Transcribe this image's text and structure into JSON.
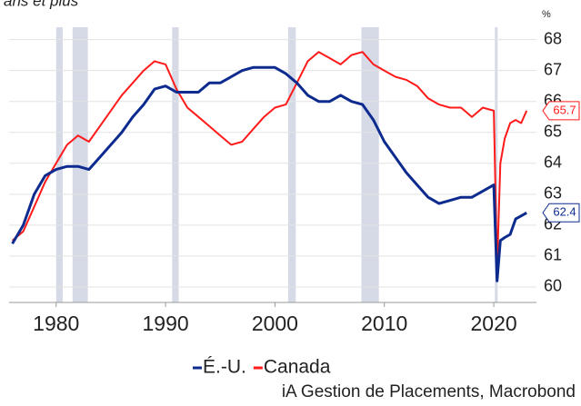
{
  "chart_data": {
    "type": "line",
    "title": "ans et plus",
    "y_unit": "%",
    "x": [
      1976,
      1977,
      1978,
      1979,
      1980,
      1981,
      1982,
      1983,
      1984,
      1985,
      1986,
      1987,
      1988,
      1989,
      1990,
      1991,
      1992,
      1993,
      1994,
      1995,
      1996,
      1997,
      1998,
      1999,
      2000,
      2001,
      2002,
      2003,
      2004,
      2005,
      2006,
      2007,
      2008,
      2009,
      2010,
      2011,
      2012,
      2013,
      2014,
      2015,
      2016,
      2017,
      2018,
      2019,
      2020.0,
      2020.3,
      2020.6,
      2021,
      2021.5,
      2022,
      2022.5,
      2023
    ],
    "series": [
      {
        "name": "É.-U.",
        "color": "#0d2b8f",
        "width": 3,
        "end_value": 62.4,
        "values": [
          61.4,
          62.0,
          63.0,
          63.6,
          63.8,
          63.9,
          63.9,
          63.8,
          64.2,
          64.6,
          65.0,
          65.5,
          65.9,
          66.4,
          66.5,
          66.3,
          66.3,
          66.3,
          66.6,
          66.6,
          66.8,
          67.0,
          67.1,
          67.1,
          67.1,
          66.9,
          66.6,
          66.2,
          66.0,
          66.0,
          66.2,
          66.0,
          65.9,
          65.4,
          64.7,
          64.2,
          63.7,
          63.3,
          62.9,
          62.7,
          62.8,
          62.9,
          62.9,
          63.1,
          63.3,
          60.2,
          61.5,
          61.6,
          61.7,
          62.2,
          62.3,
          62.4
        ]
      },
      {
        "name": "Canada",
        "color": "#ff1a1a",
        "width": 2,
        "end_value": 65.7,
        "values": [
          61.5,
          61.8,
          62.6,
          63.4,
          64.0,
          64.6,
          64.9,
          64.7,
          65.2,
          65.7,
          66.2,
          66.6,
          67.0,
          67.3,
          67.2,
          66.4,
          65.8,
          65.5,
          65.2,
          64.9,
          64.6,
          64.7,
          65.1,
          65.5,
          65.8,
          65.9,
          66.6,
          67.3,
          67.6,
          67.4,
          67.2,
          67.5,
          67.6,
          67.2,
          67.0,
          66.8,
          66.7,
          66.5,
          66.1,
          65.9,
          65.8,
          65.8,
          65.5,
          65.8,
          65.7,
          60.6,
          64.0,
          64.8,
          65.3,
          65.4,
          65.3,
          65.7
        ]
      }
    ],
    "recessions": [
      [
        1980.0,
        1980.6
      ],
      [
        1981.5,
        1982.9
      ],
      [
        1990.6,
        1991.2
      ],
      [
        2001.2,
        2001.9
      ],
      [
        2007.9,
        2009.5
      ],
      [
        2020.1,
        2020.3
      ]
    ],
    "xlim": [
      1975.7,
      2023.9
    ],
    "xticks": [
      1980,
      1990,
      2000,
      2010,
      2020
    ],
    "ylim": [
      59.5,
      68.4
    ],
    "yticks": [
      60,
      61,
      62,
      63,
      64,
      65,
      66,
      67,
      68
    ],
    "grid": true,
    "source": "iA Gestion de Placements, Macrobond"
  }
}
